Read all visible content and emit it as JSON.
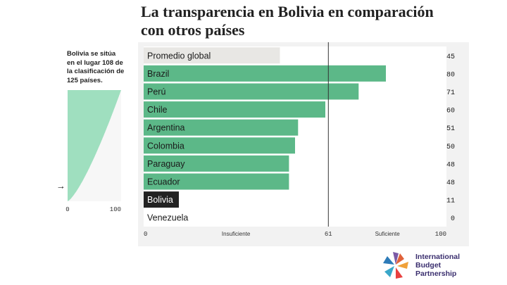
{
  "header": {
    "title_line1": "La transparencia en Bolivia en comparación",
    "title_line2": "con otros países"
  },
  "side_note": {
    "line1": "Bolivia se sitúa",
    "line2": "en el lugar 108 de",
    "line3": "la clasificación de",
    "line4": "125 países."
  },
  "logo": {
    "line1": "International",
    "line2": "Budget",
    "line3": "Partnership"
  },
  "colors": {
    "bar_green": "#5cb888",
    "bar_global": "#e8e7e4",
    "bar_bolivia": "#222222",
    "panel_bg": "#ffffff",
    "panel_border": "#dddddd",
    "mini_fill": "#9fdfbf",
    "reference_line": "#333333"
  },
  "chart_data": [
    {
      "type": "bar",
      "orientation": "horizontal",
      "categories": [
        "Promedio global",
        "Brazil",
        "Perú",
        "Chile",
        "Argentina",
        "Colombia",
        "Paraguay",
        "Ecuador",
        "Bolivia",
        "Venezuela"
      ],
      "values": [
        45,
        80,
        71,
        60,
        51,
        50,
        48,
        48,
        11,
        0
      ],
      "value_labels": [
        "45",
        "80",
        "71",
        "60",
        "51",
        "50",
        "48",
        "48",
        "11",
        "0"
      ],
      "highlight": {
        "Promedio global": "global",
        "Bolivia": "focus"
      },
      "xlim": [
        0,
        100
      ],
      "reference_line": 61,
      "x_tick_labels": [
        "0",
        "Insuficiente",
        "61",
        "Suficiente",
        "100"
      ],
      "x_tick_values": [
        0,
        30.5,
        61,
        80.5,
        100
      ],
      "grid": false,
      "legend": "none"
    },
    {
      "type": "area",
      "description_axis": "ranking distribution of 125 countries",
      "xlim": [
        0,
        100
      ],
      "x_tick_labels": [
        "0",
        "100"
      ],
      "country_count": 125,
      "marker_rank": 108,
      "marker_symbol": "→"
    }
  ]
}
